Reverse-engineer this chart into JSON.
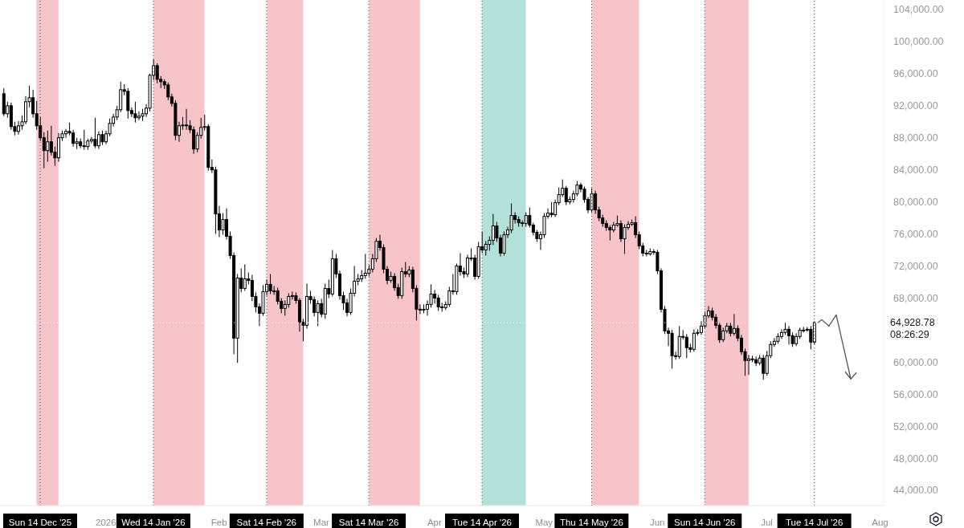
{
  "chart_data": {
    "type": "candlestick",
    "color": "#000000",
    "x": [
      "2025-12-04",
      "2025-12-05",
      "2025-12-06",
      "2025-12-07",
      "2025-12-08",
      "2025-12-09",
      "2025-12-10",
      "2025-12-11",
      "2025-12-12",
      "2025-12-13",
      "2025-12-14",
      "2025-12-15",
      "2025-12-16",
      "2025-12-17",
      "2025-12-18",
      "2025-12-19",
      "2025-12-20",
      "2025-12-21",
      "2025-12-22",
      "2025-12-23",
      "2025-12-24",
      "2025-12-25",
      "2025-12-26",
      "2025-12-27",
      "2025-12-28",
      "2025-12-29",
      "2025-12-30",
      "2025-12-31",
      "2026-01-01",
      "2026-01-02",
      "2026-01-03",
      "2026-01-04",
      "2026-01-05",
      "2026-01-06",
      "2026-01-07",
      "2026-01-08",
      "2026-01-09",
      "2026-01-10",
      "2026-01-11",
      "2026-01-12",
      "2026-01-13",
      "2026-01-14",
      "2026-01-15",
      "2026-01-16",
      "2026-01-17",
      "2026-01-18",
      "2026-01-19",
      "2026-01-20",
      "2026-01-21",
      "2026-01-22",
      "2026-01-23",
      "2026-01-24",
      "2026-01-25",
      "2026-01-26",
      "2026-01-27",
      "2026-01-28",
      "2026-01-29",
      "2026-01-30",
      "2026-01-31",
      "2026-02-01",
      "2026-02-02",
      "2026-02-03",
      "2026-02-04",
      "2026-02-05",
      "2026-02-06",
      "2026-02-07",
      "2026-02-08",
      "2026-02-09",
      "2026-02-10",
      "2026-02-11",
      "2026-02-12",
      "2026-02-13",
      "2026-02-14",
      "2026-02-15",
      "2026-02-16",
      "2026-02-17",
      "2026-02-18",
      "2026-02-19",
      "2026-02-20",
      "2026-02-21",
      "2026-02-22",
      "2026-02-23",
      "2026-02-24",
      "2026-02-25",
      "2026-02-26",
      "2026-02-27",
      "2026-02-28",
      "2026-03-01",
      "2026-03-02",
      "2026-03-03",
      "2026-03-04",
      "2026-03-05",
      "2026-03-06",
      "2026-03-07",
      "2026-03-08",
      "2026-03-09",
      "2026-03-10",
      "2026-03-11",
      "2026-03-12",
      "2026-03-13",
      "2026-03-14",
      "2026-03-15",
      "2026-03-16",
      "2026-03-17",
      "2026-03-18",
      "2026-03-19",
      "2026-03-20",
      "2026-03-21",
      "2026-03-22",
      "2026-03-23",
      "2026-03-24",
      "2026-03-25",
      "2026-03-26",
      "2026-03-27",
      "2026-03-28",
      "2026-03-29",
      "2026-03-30",
      "2026-03-31",
      "2026-04-01",
      "2026-04-02",
      "2026-04-03",
      "2026-04-04",
      "2026-04-05",
      "2026-04-06",
      "2026-04-07",
      "2026-04-08",
      "2026-04-09",
      "2026-04-10",
      "2026-04-11",
      "2026-04-12",
      "2026-04-13",
      "2026-04-14",
      "2026-04-15",
      "2026-04-16",
      "2026-04-17",
      "2026-04-18",
      "2026-04-19",
      "2026-04-20",
      "2026-04-21",
      "2026-04-22",
      "2026-04-23",
      "2026-04-24",
      "2026-04-25",
      "2026-04-26",
      "2026-04-27",
      "2026-04-28",
      "2026-04-29",
      "2026-04-30",
      "2026-05-01",
      "2026-05-02",
      "2026-05-03",
      "2026-05-04",
      "2026-05-05",
      "2026-05-06",
      "2026-05-07",
      "2026-05-08",
      "2026-05-09",
      "2026-05-10",
      "2026-05-11",
      "2026-05-12",
      "2026-05-13",
      "2026-05-14",
      "2026-05-15",
      "2026-05-16",
      "2026-05-17",
      "2026-05-18",
      "2026-05-19",
      "2026-05-20",
      "2026-05-21",
      "2026-05-22",
      "2026-05-23",
      "2026-05-24",
      "2026-05-25",
      "2026-05-26",
      "2026-05-27",
      "2026-05-28",
      "2026-05-29",
      "2026-05-30",
      "2026-05-31",
      "2026-06-01",
      "2026-06-02",
      "2026-06-03",
      "2026-06-04",
      "2026-06-05",
      "2026-06-06",
      "2026-06-07",
      "2026-06-08",
      "2026-06-09",
      "2026-06-10",
      "2026-06-11",
      "2026-06-12",
      "2026-06-13",
      "2026-06-14",
      "2026-06-15",
      "2026-06-16",
      "2026-06-17",
      "2026-06-18",
      "2026-06-19",
      "2026-06-20",
      "2026-06-21",
      "2026-06-22",
      "2026-06-23",
      "2026-06-24",
      "2026-06-25",
      "2026-06-26",
      "2026-06-27",
      "2026-06-28",
      "2026-06-29",
      "2026-06-30",
      "2026-07-01",
      "2026-07-02",
      "2026-07-03",
      "2026-07-04",
      "2026-07-05",
      "2026-07-06",
      "2026-07-07",
      "2026-07-08",
      "2026-07-09",
      "2026-07-10",
      "2026-07-11",
      "2026-07-12",
      "2026-07-13",
      "2026-07-14"
    ],
    "ohlc": [
      [
        93500,
        94200,
        90700,
        91000
      ],
      [
        91000,
        92500,
        90500,
        92000
      ],
      [
        92000,
        92400,
        89000,
        89400
      ],
      [
        89400,
        90000,
        88300,
        88800
      ],
      [
        88800,
        90100,
        88400,
        89500
      ],
      [
        89500,
        90800,
        89000,
        90000
      ],
      [
        90000,
        93200,
        89700,
        92500
      ],
      [
        92500,
        94500,
        91800,
        93000
      ],
      [
        93000,
        94000,
        90500,
        91000
      ],
      [
        91000,
        92600,
        89000,
        89500
      ],
      [
        89500,
        90600,
        87600,
        88000
      ],
      [
        88000,
        88700,
        84200,
        86400
      ],
      [
        86400,
        88900,
        85000,
        87500
      ],
      [
        87500,
        89500,
        85800,
        86200
      ],
      [
        86200,
        86900,
        84500,
        85500
      ],
      [
        85500,
        88600,
        85000,
        88000
      ],
      [
        88000,
        88900,
        87600,
        88500
      ],
      [
        88500,
        89100,
        88000,
        88800
      ],
      [
        88800,
        89900,
        88300,
        88600
      ],
      [
        88600,
        89000,
        86900,
        87300
      ],
      [
        87300,
        88000,
        86600,
        87500
      ],
      [
        87500,
        87900,
        86700,
        87000
      ],
      [
        87000,
        89000,
        86500,
        86900
      ],
      [
        86900,
        87900,
        86500,
        87600
      ],
      [
        87600,
        88100,
        87300,
        87800
      ],
      [
        87800,
        90500,
        86700,
        87000
      ],
      [
        87000,
        88800,
        86600,
        88400
      ],
      [
        88400,
        88900,
        87100,
        87500
      ],
      [
        87500,
        88900,
        87200,
        88500
      ],
      [
        88500,
        90400,
        88200,
        89800
      ],
      [
        89800,
        91000,
        89400,
        90600
      ],
      [
        90600,
        92000,
        90200,
        91500
      ],
      [
        91500,
        95000,
        91200,
        94000
      ],
      [
        94000,
        94700,
        93300,
        93800
      ],
      [
        93800,
        94200,
        90400,
        91400
      ],
      [
        91400,
        91800,
        90600,
        91000
      ],
      [
        91000,
        92500,
        89900,
        90500
      ],
      [
        90500,
        91300,
        90200,
        90700
      ],
      [
        90700,
        91600,
        90100,
        91000
      ],
      [
        91000,
        92200,
        90600,
        91700
      ],
      [
        91700,
        96000,
        91300,
        95800
      ],
      [
        95800,
        97800,
        95200,
        97000
      ],
      [
        97000,
        97300,
        94800,
        95300
      ],
      [
        95300,
        95700,
        94200,
        95000
      ],
      [
        95000,
        95300,
        94100,
        94600
      ],
      [
        94600,
        94900,
        92700,
        93100
      ],
      [
        93100,
        93500,
        91900,
        92300
      ],
      [
        92300,
        92700,
        87700,
        88300
      ],
      [
        88300,
        90000,
        87500,
        89500
      ],
      [
        89500,
        90600,
        89000,
        89600
      ],
      [
        89600,
        91600,
        89000,
        89500
      ],
      [
        89500,
        90200,
        88600,
        89000
      ],
      [
        89000,
        89400,
        86000,
        86600
      ],
      [
        86600,
        88700,
        86200,
        88300
      ],
      [
        88300,
        90500,
        87900,
        89300
      ],
      [
        89300,
        90900,
        88900,
        89400
      ],
      [
        89400,
        89700,
        83900,
        84300
      ],
      [
        84300,
        85300,
        83600,
        84000
      ],
      [
        84000,
        84400,
        76000,
        78500
      ],
      [
        78500,
        79500,
        75600,
        76500
      ],
      [
        76500,
        78600,
        75900,
        77800
      ],
      [
        77800,
        79200,
        75300,
        75700
      ],
      [
        75700,
        76300,
        72900,
        73300
      ],
      [
        73300,
        73700,
        61000,
        63000
      ],
      [
        63000,
        71000,
        59900,
        70500
      ],
      [
        70500,
        71700,
        68700,
        69200
      ],
      [
        69200,
        72200,
        68900,
        70400
      ],
      [
        70400,
        71200,
        69700,
        70200
      ],
      [
        70200,
        70900,
        67600,
        68200
      ],
      [
        68200,
        68700,
        66200,
        66900
      ],
      [
        66900,
        67300,
        64500,
        66100
      ],
      [
        66100,
        69600,
        65800,
        68800
      ],
      [
        68800,
        70300,
        68300,
        69700
      ],
      [
        69700,
        71000,
        68500,
        68900
      ],
      [
        68900,
        69500,
        68400,
        68900
      ],
      [
        68900,
        69300,
        67200,
        67600
      ],
      [
        67600,
        68000,
        66100,
        66700
      ],
      [
        66700,
        67700,
        65800,
        67200
      ],
      [
        67200,
        68600,
        66800,
        68200
      ],
      [
        68200,
        68800,
        67800,
        68300
      ],
      [
        68300,
        68700,
        67300,
        67700
      ],
      [
        67700,
        68000,
        63800,
        65000
      ],
      [
        65000,
        65400,
        62600,
        64600
      ],
      [
        64600,
        69800,
        64200,
        68200
      ],
      [
        68200,
        68900,
        67300,
        67800
      ],
      [
        67800,
        68200,
        65700,
        66200
      ],
      [
        66200,
        67700,
        64500,
        67300
      ],
      [
        67300,
        67900,
        65600,
        66000
      ],
      [
        66000,
        69800,
        65400,
        69200
      ],
      [
        69200,
        70300,
        68000,
        68500
      ],
      [
        68500,
        74000,
        68200,
        72900
      ],
      [
        72900,
        73500,
        70500,
        71000
      ],
      [
        71000,
        71400,
        67800,
        68300
      ],
      [
        68300,
        68800,
        66500,
        67400
      ],
      [
        67400,
        67900,
        65700,
        66200
      ],
      [
        66200,
        69200,
        65900,
        68600
      ],
      [
        68600,
        72000,
        68200,
        70100
      ],
      [
        70100,
        71000,
        69600,
        70400
      ],
      [
        70400,
        71500,
        70000,
        70800
      ],
      [
        70800,
        73500,
        70400,
        71100
      ],
      [
        71100,
        72100,
        70700,
        71600
      ],
      [
        71600,
        73500,
        71200,
        72900
      ],
      [
        72900,
        75500,
        72500,
        75100
      ],
      [
        75100,
        75900,
        73900,
        74300
      ],
      [
        74300,
        74700,
        71100,
        71600
      ],
      [
        71600,
        72000,
        69700,
        70200
      ],
      [
        70200,
        71300,
        69900,
        70700
      ],
      [
        70700,
        71100,
        68900,
        69300
      ],
      [
        69300,
        69800,
        67900,
        68300
      ],
      [
        68300,
        71800,
        67900,
        71300
      ],
      [
        71300,
        72500,
        70600,
        71000
      ],
      [
        71000,
        72000,
        70600,
        71500
      ],
      [
        71500,
        71900,
        68700,
        69200
      ],
      [
        69200,
        69600,
        65200,
        66600
      ],
      [
        66600,
        67200,
        66000,
        66500
      ],
      [
        66500,
        67200,
        66100,
        66600
      ],
      [
        66600,
        67700,
        65800,
        67200
      ],
      [
        67200,
        69700,
        66800,
        68500
      ],
      [
        68500,
        69000,
        67300,
        68000
      ],
      [
        68000,
        68400,
        66400,
        66900
      ],
      [
        66900,
        67400,
        66300,
        66800
      ],
      [
        66800,
        67600,
        66500,
        67200
      ],
      [
        67200,
        69400,
        66900,
        68900
      ],
      [
        68900,
        71000,
        68400,
        68800
      ],
      [
        68800,
        72300,
        68400,
        72000
      ],
      [
        72000,
        73600,
        70800,
        71300
      ],
      [
        71300,
        71800,
        70500,
        71000
      ],
      [
        71000,
        73400,
        70600,
        73000
      ],
      [
        73000,
        74200,
        72600,
        73000
      ],
      [
        73000,
        73400,
        70300,
        70700
      ],
      [
        70700,
        75000,
        70400,
        74400
      ],
      [
        74400,
        76300,
        73600,
        74000
      ],
      [
        74000,
        75100,
        73300,
        74700
      ],
      [
        74700,
        75700,
        73900,
        75200
      ],
      [
        75200,
        78500,
        74600,
        77000
      ],
      [
        77000,
        77500,
        75000,
        75500
      ],
      [
        75500,
        75900,
        73200,
        73600
      ],
      [
        73600,
        76300,
        73300,
        75900
      ],
      [
        75900,
        76900,
        75500,
        76500
      ],
      [
        76500,
        79800,
        76100,
        78300
      ],
      [
        78300,
        78700,
        77300,
        77800
      ],
      [
        77800,
        78200,
        76900,
        77400
      ],
      [
        77400,
        77700,
        76900,
        77300
      ],
      [
        77300,
        78700,
        76900,
        78300
      ],
      [
        78300,
        79300,
        76800,
        77100
      ],
      [
        77100,
        77400,
        75800,
        76200
      ],
      [
        76200,
        76500,
        75000,
        75400
      ],
      [
        75400,
        76300,
        74000,
        75900
      ],
      [
        75900,
        78600,
        75500,
        78200
      ],
      [
        78200,
        79200,
        77900,
        78600
      ],
      [
        78600,
        80000,
        78100,
        78400
      ],
      [
        78400,
        80300,
        78100,
        79900
      ],
      [
        79900,
        81800,
        79600,
        80900
      ],
      [
        80900,
        82800,
        80600,
        81700
      ],
      [
        81700,
        82000,
        79600,
        80000
      ],
      [
        80000,
        80700,
        79700,
        80300
      ],
      [
        80300,
        81400,
        79900,
        81000
      ],
      [
        81000,
        82600,
        80700,
        82100
      ],
      [
        82100,
        82400,
        81200,
        81600
      ],
      [
        81600,
        81900,
        79900,
        80300
      ],
      [
        80300,
        80600,
        78600,
        79000
      ],
      [
        79000,
        81700,
        78700,
        81000
      ],
      [
        81000,
        81400,
        78500,
        79000
      ],
      [
        79000,
        79400,
        77600,
        78000
      ],
      [
        78000,
        78400,
        76900,
        77300
      ],
      [
        77300,
        77700,
        76400,
        76800
      ],
      [
        76800,
        77100,
        75200,
        76500
      ],
      [
        76500,
        77500,
        76200,
        77100
      ],
      [
        77100,
        78300,
        76900,
        77300
      ],
      [
        77300,
        77700,
        75000,
        75400
      ],
      [
        75400,
        77200,
        73500,
        76800
      ],
      [
        76800,
        77600,
        76500,
        77200
      ],
      [
        77200,
        77800,
        77000,
        77400
      ],
      [
        77400,
        78200,
        75500,
        75900
      ],
      [
        75900,
        76300,
        74100,
        74500
      ],
      [
        74500,
        74900,
        73200,
        73600
      ],
      [
        73600,
        74000,
        73200,
        73500
      ],
      [
        73500,
        74200,
        73300,
        73800
      ],
      [
        73800,
        74100,
        73400,
        73700
      ],
      [
        73700,
        74000,
        71000,
        71400
      ],
      [
        71400,
        71700,
        66200,
        66600
      ],
      [
        66600,
        67000,
        63500,
        63900
      ],
      [
        63900,
        64300,
        62000,
        63600
      ],
      [
        63600,
        64000,
        59200,
        60800
      ],
      [
        60800,
        61300,
        60300,
        60700
      ],
      [
        60700,
        64500,
        60400,
        63200
      ],
      [
        63200,
        64000,
        62800,
        63100
      ],
      [
        63100,
        63500,
        60500,
        61800
      ],
      [
        61800,
        62300,
        61200,
        61600
      ],
      [
        61600,
        64100,
        61300,
        63600
      ],
      [
        63600,
        64100,
        63300,
        63700
      ],
      [
        63700,
        65100,
        63400,
        64500
      ],
      [
        64500,
        66300,
        64200,
        65800
      ],
      [
        65800,
        67000,
        65500,
        66400
      ],
      [
        66400,
        66800,
        65200,
        65600
      ],
      [
        65600,
        66000,
        64200,
        64600
      ],
      [
        64600,
        65000,
        62400,
        62800
      ],
      [
        62800,
        64300,
        62500,
        63900
      ],
      [
        63900,
        64900,
        63600,
        64500
      ],
      [
        64500,
        64900,
        63200,
        63600
      ],
      [
        63600,
        66000,
        63300,
        64200
      ],
      [
        64200,
        64600,
        62600,
        63000
      ],
      [
        63000,
        63400,
        60900,
        61300
      ],
      [
        61300,
        61700,
        58300,
        60200
      ],
      [
        60200,
        60900,
        58400,
        60400
      ],
      [
        60400,
        60800,
        60000,
        60300
      ],
      [
        60300,
        60700,
        59500,
        59900
      ],
      [
        59900,
        60900,
        59600,
        60500
      ],
      [
        60500,
        60900,
        57800,
        58600
      ],
      [
        58600,
        61400,
        58300,
        60800
      ],
      [
        60800,
        62600,
        60500,
        62200
      ],
      [
        62200,
        63000,
        61900,
        62600
      ],
      [
        62600,
        63600,
        62300,
        63200
      ],
      [
        63200,
        64100,
        62900,
        63700
      ],
      [
        63700,
        64900,
        63400,
        64100
      ],
      [
        64100,
        64500,
        62200,
        63300
      ],
      [
        63300,
        63700,
        61900,
        62300
      ],
      [
        62300,
        63600,
        62000,
        63200
      ],
      [
        63200,
        64300,
        62900,
        64000
      ],
      [
        64000,
        64400,
        63700,
        64000
      ],
      [
        64000,
        64400,
        63800,
        64100
      ],
      [
        64100,
        64500,
        61600,
        62500
      ],
      [
        62500,
        65100,
        62200,
        64928.78
      ]
    ],
    "series": [
      {
        "type": "line",
        "color": "#555555",
        "x": [
          "2026-07-15",
          "2026-07-16",
          "2026-07-18",
          "2026-07-20",
          "2026-07-24"
        ],
        "values": [
          64900,
          65300,
          64500,
          65900,
          57900
        ]
      }
    ],
    "xlim": [
      "2025-12-03",
      "2026-08-02"
    ],
    "xticks": [
      {
        "value": "2025-12-14",
        "label": "Sun 14 Dec '25"
      },
      {
        "value": "2026-01-01",
        "label": "2026"
      },
      {
        "value": "2026-01-14",
        "label": "Wed 14 Jan '26"
      },
      {
        "value": "2026-02-01",
        "label": "Feb"
      },
      {
        "value": "2026-02-14",
        "label": "Sat 14 Feb '26"
      },
      {
        "value": "2026-03-01",
        "label": "Mar"
      },
      {
        "value": "2026-03-14",
        "label": "Sat 14 Mar '26"
      },
      {
        "value": "2026-04-01",
        "label": "Apr"
      },
      {
        "value": "2026-04-14",
        "label": "Tue 14 Apr '26"
      },
      {
        "value": "2026-05-01",
        "label": "May"
      },
      {
        "value": "2026-05-14",
        "label": "Thu 14 May '26"
      },
      {
        "value": "2026-06-01",
        "label": "Jun"
      },
      {
        "value": "2026-06-14",
        "label": "Sun 14 Jun '26"
      },
      {
        "value": "2026-07-01",
        "label": "Jul"
      },
      {
        "value": "2026-07-14",
        "label": "Tue 14 Jul '26"
      },
      {
        "value": "2026-08-01",
        "label": "Aug"
      }
    ],
    "ylim": [
      42100,
      105200
    ],
    "yticks": [
      {
        "value": 44000,
        "label": "44,000.00"
      },
      {
        "value": 48000,
        "label": "48,000.00"
      },
      {
        "value": 52000,
        "label": "52,000.00"
      },
      {
        "value": 56000,
        "label": "56,000.00"
      },
      {
        "value": 60000,
        "label": "60,000.00"
      },
      {
        "value": 68000,
        "label": "68,000.00"
      },
      {
        "value": 72000,
        "label": "72,000.00"
      },
      {
        "value": 76000,
        "label": "76,000.00"
      },
      {
        "value": 80000,
        "label": "80,000.00"
      },
      {
        "value": 84000,
        "label": "84,000.00"
      },
      {
        "value": 88000,
        "label": "88,000.00"
      },
      {
        "value": 92000,
        "label": "92,000.00"
      },
      {
        "value": 96000,
        "label": "96,000.00"
      },
      {
        "value": 100000,
        "label": "100,000.00"
      },
      {
        "value": 104000,
        "label": "104,000.00"
      }
    ],
    "bands": [
      {
        "axis": "x",
        "from": "2025-12-13",
        "to": "2025-12-19",
        "color": "#f7c5c9"
      },
      {
        "axis": "x",
        "from": "2026-01-14",
        "to": "2026-01-28",
        "color": "#f7c5c9"
      },
      {
        "axis": "x",
        "from": "2026-02-14",
        "to": "2026-02-24",
        "color": "#f7c5c9"
      },
      {
        "axis": "x",
        "from": "2026-03-14",
        "to": "2026-03-28",
        "color": "#f7c5c9"
      },
      {
        "axis": "x",
        "from": "2026-04-14",
        "to": "2026-04-26",
        "color": "#b3e0d8"
      },
      {
        "axis": "x",
        "from": "2026-05-14",
        "to": "2026-05-27",
        "color": "#f7c5c9"
      },
      {
        "axis": "x",
        "from": "2026-06-14",
        "to": "2026-06-26",
        "color": "#f7c5c9"
      }
    ],
    "ref_lines": [
      {
        "axis": "x",
        "value": "2025-12-14",
        "color": "#555555",
        "line_style": "dotted"
      },
      {
        "axis": "x",
        "value": "2026-01-14",
        "color": "#555555",
        "line_style": "dotted"
      },
      {
        "axis": "x",
        "value": "2026-02-14",
        "color": "#555555",
        "line_style": "dotted"
      },
      {
        "axis": "x",
        "value": "2026-03-14",
        "color": "#555555",
        "line_style": "dotted"
      },
      {
        "axis": "x",
        "value": "2026-04-14",
        "color": "#555555",
        "line_style": "dotted"
      },
      {
        "axis": "x",
        "value": "2026-05-14",
        "color": "#555555",
        "line_style": "dotted"
      },
      {
        "axis": "x",
        "value": "2026-06-14",
        "color": "#555555",
        "line_style": "dotted"
      },
      {
        "axis": "x",
        "value": "2026-07-14",
        "color": "#555555",
        "line_style": "dotted"
      },
      {
        "axis": "y",
        "value": 64928.78,
        "label": "64,928.78",
        "color": "#ffffff",
        "line_style": "dotted"
      }
    ],
    "annotations": [
      "08:26:29"
    ]
  }
}
